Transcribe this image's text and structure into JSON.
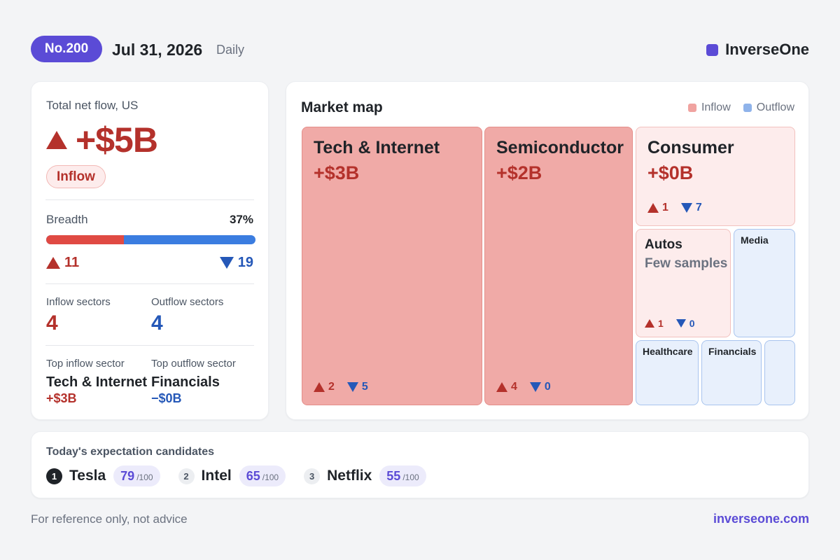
{
  "header": {
    "issue": "No.200",
    "date": "Jul 31, 2026",
    "cadence": "Daily",
    "brand": "InverseOne",
    "brand_color": "#5b4bd6"
  },
  "summary": {
    "label": "Total net flow, US",
    "value": "+$5B",
    "badge": "Inflow",
    "breadth_label": "Breadth",
    "breadth_pct": "37%",
    "breadth_fraction": 0.37,
    "up_count": "11",
    "down_count": "19",
    "inflow_sectors_label": "Inflow sectors",
    "inflow_sectors": "4",
    "outflow_sectors_label": "Outflow sectors",
    "outflow_sectors": "4",
    "top_inflow_label": "Top inflow sector",
    "top_inflow_name": "Tech & Internet",
    "top_inflow_value": "+$3B",
    "top_outflow_label": "Top outflow sector",
    "top_outflow_name": "Financials",
    "top_outflow_value": "−$0B"
  },
  "map": {
    "title": "Market map",
    "legend_inflow": "Inflow",
    "legend_outflow": "Outflow",
    "inflow_color": "#f0a3a0",
    "outflow_color": "#8fb3ea",
    "tiles": {
      "tech": {
        "name": "Tech & Internet",
        "value": "+$3B",
        "up": "2",
        "down": "5"
      },
      "semi": {
        "name": "Semiconductor",
        "value": "+$2B",
        "up": "4",
        "down": "0"
      },
      "consumer": {
        "name": "Consumer",
        "value": "+$0B",
        "up": "1",
        "down": "7"
      },
      "autos": {
        "name": "Autos",
        "value": "Few samples",
        "up": "1",
        "down": "0"
      },
      "media": {
        "name": "Media"
      },
      "healthcare": {
        "name": "Healthcare"
      },
      "financials": {
        "name": "Financials"
      }
    }
  },
  "candidates": {
    "title": "Today's expectation candidates",
    "items": [
      {
        "rank": "1",
        "name": "Tesla",
        "score": "79",
        "max": "/100"
      },
      {
        "rank": "2",
        "name": "Intel",
        "score": "65",
        "max": "/100"
      },
      {
        "rank": "3",
        "name": "Netflix",
        "score": "55",
        "max": "/100"
      }
    ]
  },
  "footer": {
    "disclaimer": "For reference only, not advice",
    "site": "inverseone.com"
  }
}
